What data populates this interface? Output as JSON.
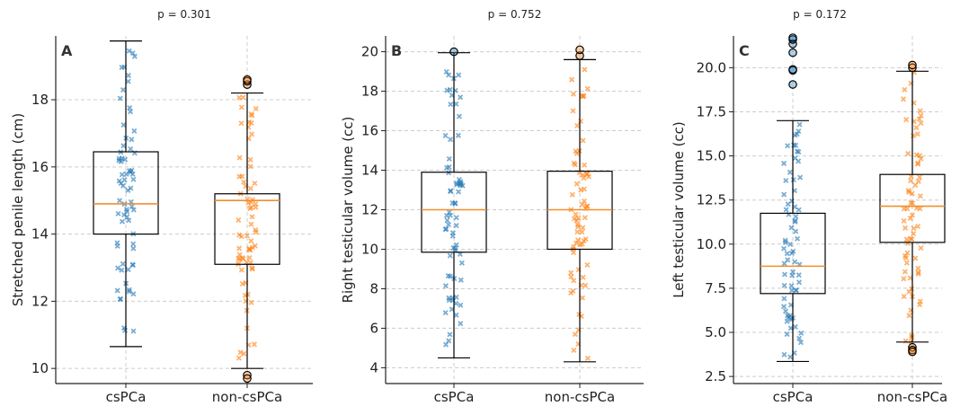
{
  "chart_data": [
    {
      "type": "box",
      "panel_label": "A",
      "p_value_text": "p = 0.301",
      "ylabel": "Stretched penile length (cm)",
      "ylim": [
        9.55,
        19.9
      ],
      "yticks": [
        10,
        12,
        14,
        16,
        18
      ],
      "categories": [
        "csPCa",
        "non-csPCa"
      ],
      "grid": true,
      "boxes": [
        {
          "name": "csPCa",
          "whisker_low": 10.65,
          "q1": 14.0,
          "median": 14.9,
          "q3": 16.45,
          "whisker_high": 19.75,
          "outliers": []
        },
        {
          "name": "non-csPCa",
          "whisker_low": 10.0,
          "q1": 13.1,
          "median": 15.0,
          "q3": 15.2,
          "whisker_high": 18.2,
          "outliers": [
            18.45,
            18.55,
            18.6,
            9.8,
            9.7
          ]
        }
      ]
    },
    {
      "type": "box",
      "panel_label": "B",
      "p_value_text": "p = 0.752",
      "ylabel": "Right testicular volume (cc)",
      "ylim": [
        3.2,
        20.8
      ],
      "yticks": [
        4,
        6,
        8,
        10,
        12,
        14,
        16,
        18,
        20
      ],
      "categories": [
        "csPCa",
        "non-csPCa"
      ],
      "grid": true,
      "boxes": [
        {
          "name": "csPCa",
          "whisker_low": 4.5,
          "q1": 9.85,
          "median": 12.0,
          "q3": 13.9,
          "whisker_high": 19.95,
          "outliers": [
            20.0
          ]
        },
        {
          "name": "non-csPCa",
          "whisker_low": 4.3,
          "q1": 10.0,
          "median": 12.0,
          "q3": 13.95,
          "whisker_high": 19.6,
          "outliers": [
            19.8,
            20.1
          ]
        }
      ]
    },
    {
      "type": "box",
      "panel_label": "C",
      "p_value_text": "p = 0.172",
      "ylabel": "Left testicular volume (cc)",
      "ylim": [
        2.1,
        21.8
      ],
      "yticks": [
        2.5,
        5.0,
        7.5,
        10.0,
        12.5,
        15.0,
        17.5,
        20.0
      ],
      "categories": [
        "csPCa",
        "non-csPCa"
      ],
      "grid": true,
      "boxes": [
        {
          "name": "csPCa",
          "whisker_low": 3.35,
          "q1": 7.2,
          "median": 8.75,
          "q3": 11.75,
          "whisker_high": 17.0,
          "outliers": [
            19.05,
            19.85,
            19.9,
            20.85,
            21.35,
            21.6,
            21.75
          ]
        },
        {
          "name": "non-csPCa",
          "whisker_low": 4.45,
          "q1": 10.1,
          "median": 12.15,
          "q3": 13.95,
          "whisker_high": 19.8,
          "outliers": [
            20.0,
            20.15,
            4.15,
            4.0,
            3.9
          ]
        }
      ]
    }
  ]
}
